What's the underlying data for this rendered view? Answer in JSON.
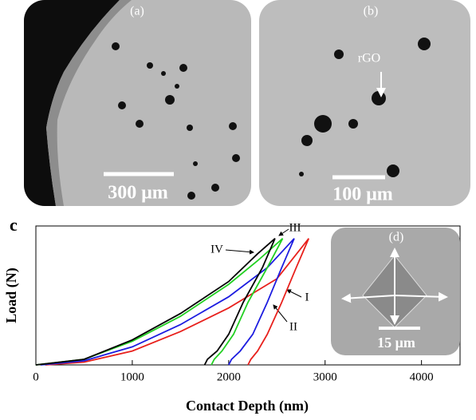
{
  "panels": [
    {
      "label": "(a)",
      "scale_bar": "300 μm"
    },
    {
      "label": "(b)",
      "scale_bar": "100 μm",
      "annotation": "rGO"
    }
  ],
  "chart_data": {
    "type": "line",
    "panel_label": "c",
    "x_label": "Contact Depth (nm)",
    "y_label": "Load (N)",
    "xlim": [
      0,
      4400
    ],
    "xticks": [
      0,
      1000,
      2000,
      3000,
      4000
    ],
    "ylim": [
      0,
      1
    ],
    "series": [
      {
        "name": "I",
        "color": "#e8201c",
        "x": [
          100,
          500,
          1000,
          1500,
          2000,
          2500,
          2830,
          2700,
          2550,
          2400,
          2300,
          2230,
          2200
        ],
        "values": [
          0,
          0.02,
          0.1,
          0.24,
          0.41,
          0.62,
          0.91,
          0.7,
          0.45,
          0.22,
          0.1,
          0.04,
          0
        ]
      },
      {
        "name": "II",
        "color": "#1c1ce0",
        "x": [
          50,
          500,
          1000,
          1500,
          2000,
          2400,
          2680,
          2550,
          2400,
          2250,
          2120,
          2030,
          2000
        ],
        "values": [
          0,
          0.03,
          0.13,
          0.29,
          0.49,
          0.7,
          0.91,
          0.7,
          0.45,
          0.22,
          0.1,
          0.04,
          0
        ]
      },
      {
        "name": "III",
        "color": "#22d022",
        "x": [
          0,
          500,
          1000,
          1500,
          2000,
          2300,
          2560,
          2400,
          2200,
          2050,
          1930,
          1850,
          1820
        ],
        "values": [
          0,
          0.04,
          0.17,
          0.35,
          0.58,
          0.75,
          0.91,
          0.7,
          0.45,
          0.22,
          0.1,
          0.04,
          0
        ]
      },
      {
        "name": "IV",
        "color": "#000000",
        "x": [
          0,
          500,
          1000,
          1500,
          2000,
          2300,
          2480,
          2350,
          2150,
          2000,
          1880,
          1780,
          1750
        ],
        "values": [
          0,
          0.04,
          0.18,
          0.37,
          0.6,
          0.8,
          0.91,
          0.7,
          0.45,
          0.22,
          0.1,
          0.04,
          0
        ]
      }
    ],
    "inset": {
      "label": "(d)",
      "scale_bar": "15 μm"
    }
  }
}
